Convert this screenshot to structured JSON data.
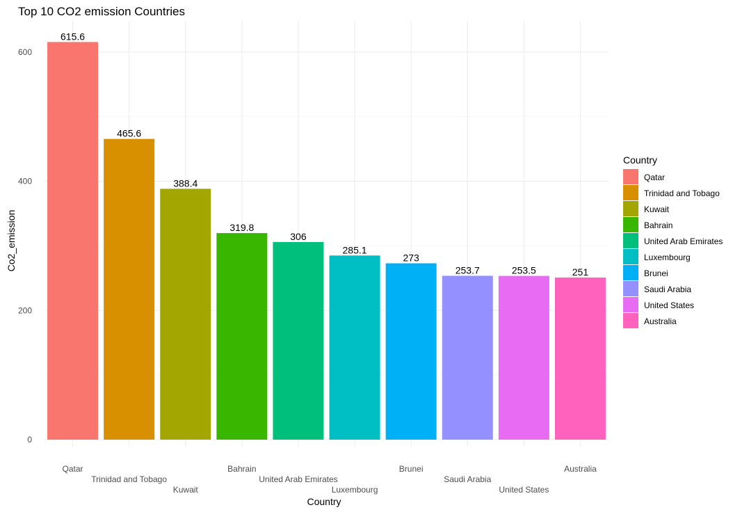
{
  "chart_data": {
    "type": "bar",
    "title": "Top 10 CO2 emission Countries",
    "xlabel": "Country",
    "ylabel": "Co2_emission",
    "ylim": [
      0,
      640
    ],
    "yticks": [
      0,
      200,
      400,
      600
    ],
    "grid": true,
    "categories": [
      "Qatar",
      "Trinidad and Tobago",
      "Kuwait",
      "Bahrain",
      "United Arab Emirates",
      "Luxembourg",
      "Brunei",
      "Saudi Arabia",
      "United States",
      "Australia"
    ],
    "values": [
      615.6,
      465.6,
      388.4,
      319.8,
      306,
      285.1,
      273,
      253.7,
      253.5,
      251
    ],
    "value_labels": [
      "615.6",
      "465.6",
      "388.4",
      "319.8",
      "306",
      "285.1",
      "273",
      "253.7",
      "253.5",
      "251"
    ],
    "colors": [
      "#F8766D",
      "#D89000",
      "#A3A500",
      "#39B600",
      "#00BF7D",
      "#00BFC4",
      "#00B0F6",
      "#9590FF",
      "#E76BF3",
      "#FF62BC"
    ],
    "legend": {
      "title": "Country",
      "position": "right",
      "entries": [
        "Qatar",
        "Trinidad and Tobago",
        "Kuwait",
        "Bahrain",
        "United Arab Emirates",
        "Luxembourg",
        "Brunei",
        "Saudi Arabia",
        "United States",
        "Australia"
      ]
    }
  }
}
